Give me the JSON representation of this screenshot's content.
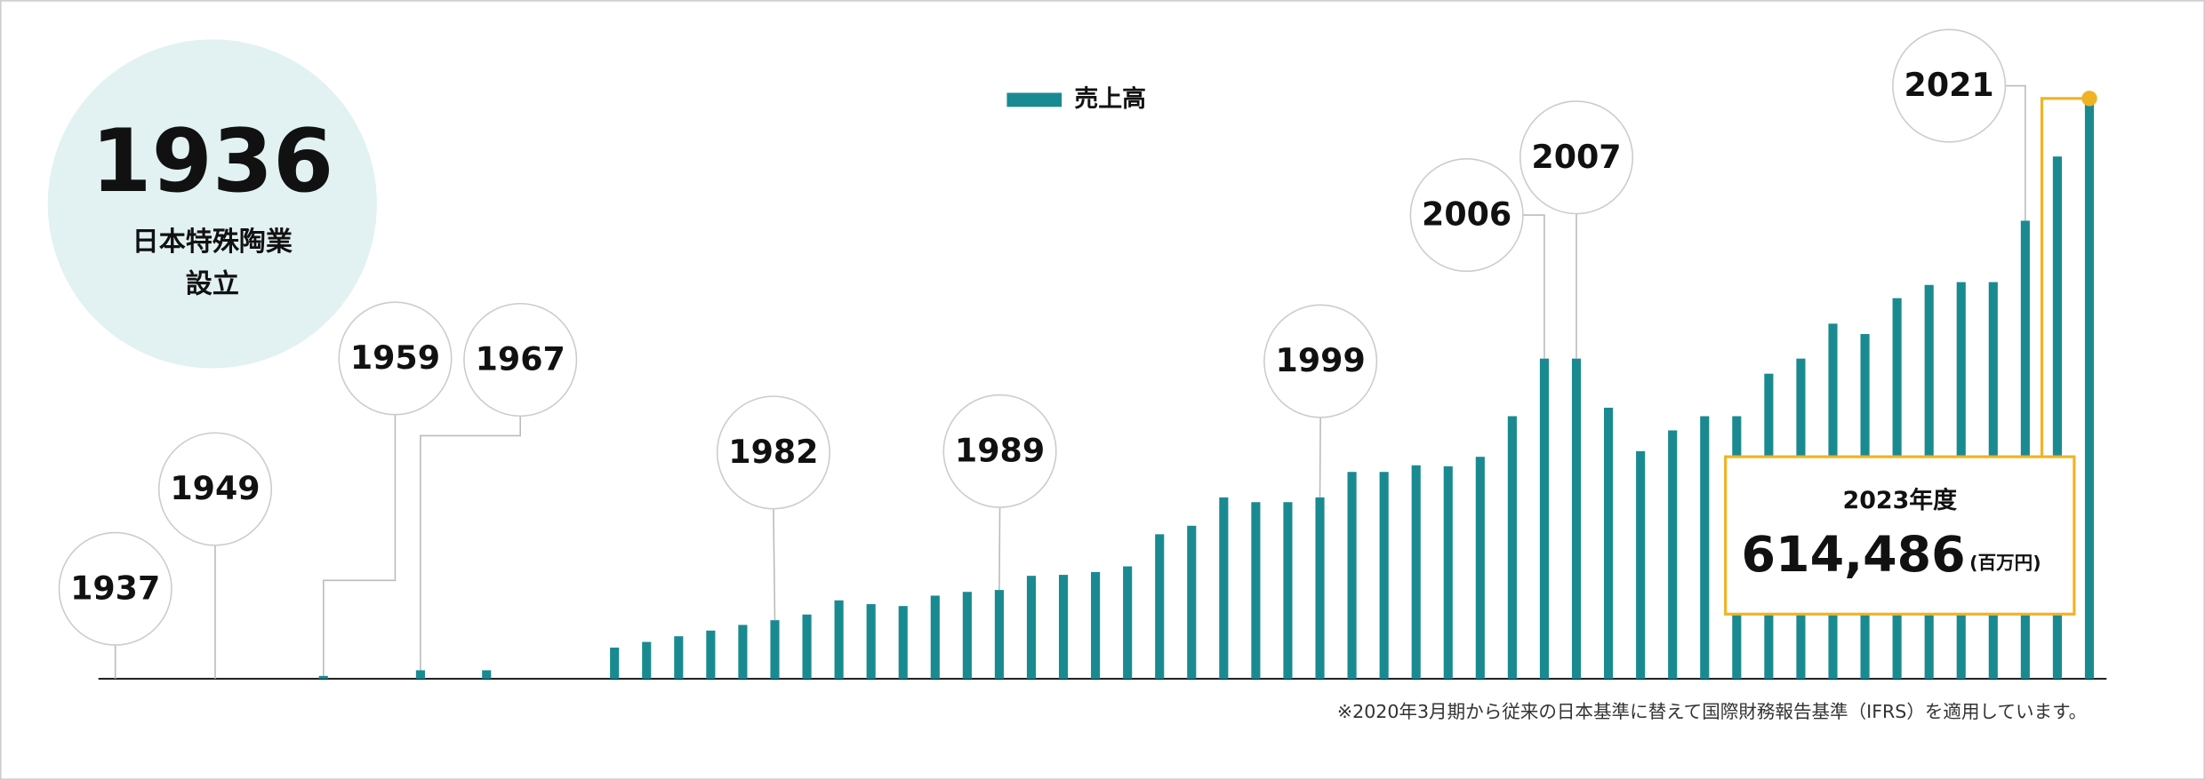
{
  "chart_data": {
    "type": "bar",
    "founding": {
      "year": "1936",
      "lines": [
        "日本特殊陶業",
        "設立"
      ]
    },
    "categories": [
      "1937",
      "1949",
      "1959",
      "1967",
      null,
      null,
      null,
      null,
      null,
      null,
      "1982",
      null,
      null,
      null,
      null,
      null,
      null,
      "1989",
      null,
      null,
      null,
      null,
      null,
      null,
      null,
      null,
      null,
      "1999",
      null,
      null,
      null,
      null,
      null,
      null,
      "2006",
      "2007",
      null,
      null,
      null,
      null,
      null,
      null,
      null,
      null,
      null,
      null,
      null,
      null,
      null,
      "2021",
      null,
      null
    ],
    "series": [
      {
        "name": "売上高",
        "color": "#1a8a91",
        "values": [
          0,
          0,
          3000,
          9000,
          9000,
          33000,
          39000,
          45000,
          51000,
          57000,
          62000,
          68000,
          83000,
          79000,
          77000,
          88000,
          92000,
          94000,
          109000,
          110000,
          113000,
          119000,
          153000,
          162000,
          192000,
          187000,
          187000,
          192000,
          219000,
          219000,
          226000,
          225000,
          235000,
          278000,
          339000,
          339000,
          287000,
          241000,
          263000,
          278000,
          278000,
          323000,
          339000,
          376000,
          365000,
          403000,
          417000,
          420000,
          420000,
          485000,
          553000,
          614486
        ],
        "value_labels": [
          null,
          null,
          null,
          null,
          null,
          null,
          null,
          null,
          null,
          null,
          null,
          null,
          null,
          null,
          null,
          null,
          null,
          null,
          null,
          null,
          null,
          null,
          null,
          null,
          null,
          null,
          null,
          null,
          null,
          null,
          null,
          null,
          null,
          null,
          null,
          null,
          null,
          null,
          null,
          null,
          null,
          null,
          null,
          null,
          null,
          null,
          null,
          null,
          null,
          null,
          null,
          "614,486"
        ]
      }
    ],
    "annotation": {
      "title": "2023年度",
      "unit": "(百万円)"
    },
    "note": "※2020年3月期から従来の日本基準に替えて国際財務報告基準（IFRS）を適用しています。"
  }
}
